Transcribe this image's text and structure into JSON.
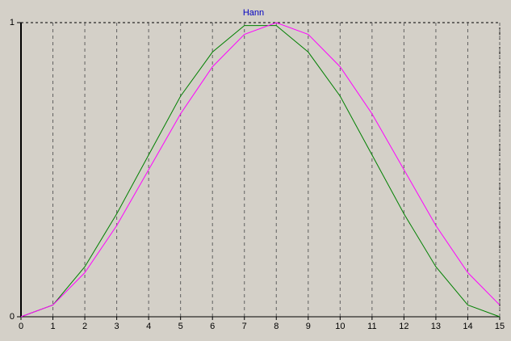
{
  "chart_data": {
    "type": "line",
    "title": "Hann",
    "x": [
      0,
      1,
      2,
      3,
      4,
      5,
      6,
      7,
      8,
      9,
      10,
      11,
      12,
      13,
      14,
      15
    ],
    "series": [
      {
        "color": "#008000",
        "values": [
          0,
          0.04,
          0.17,
          0.35,
          0.55,
          0.75,
          0.9,
          0.99,
          0.99,
          0.9,
          0.75,
          0.55,
          0.35,
          0.17,
          0.04,
          0
        ]
      },
      {
        "color": "#ff00ff",
        "values": [
          0,
          0.04,
          0.15,
          0.31,
          0.5,
          0.69,
          0.85,
          0.96,
          1,
          0.96,
          0.85,
          0.69,
          0.5,
          0.31,
          0.15,
          0.04
        ]
      }
    ],
    "xlim": [
      0,
      15
    ],
    "xticks": [
      0,
      1,
      2,
      3,
      4,
      5,
      6,
      7,
      8,
      9,
      10,
      11,
      12,
      13,
      14,
      15
    ],
    "ylim": [
      0,
      1
    ],
    "yticks": [
      0,
      1
    ],
    "grid": true
  }
}
